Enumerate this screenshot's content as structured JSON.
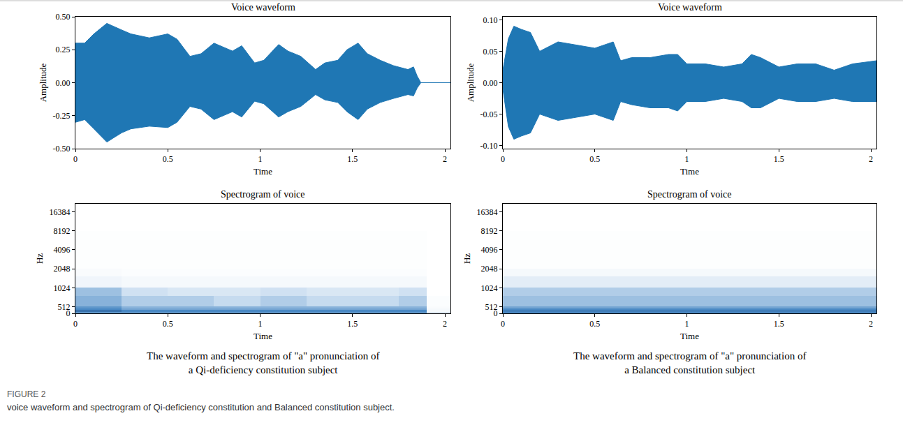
{
  "chart_data": [
    {
      "type": "area",
      "title": "Voice waveform",
      "x_label": "Time",
      "y_label": "Amplitude",
      "color": "#1f77b4",
      "x": [
        0,
        0.05,
        0.1,
        0.17,
        0.25,
        0.3,
        0.4,
        0.5,
        0.55,
        0.62,
        0.68,
        0.75,
        0.85,
        0.9,
        0.97,
        1.02,
        1.1,
        1.15,
        1.22,
        1.3,
        1.35,
        1.42,
        1.47,
        1.53,
        1.58,
        1.65,
        1.72,
        1.8,
        1.83,
        1.85,
        1.87,
        2.03
      ],
      "upper": [
        0.3,
        0.3,
        0.37,
        0.45,
        0.4,
        0.37,
        0.34,
        0.37,
        0.33,
        0.2,
        0.22,
        0.3,
        0.24,
        0.28,
        0.15,
        0.17,
        0.29,
        0.24,
        0.2,
        0.1,
        0.15,
        0.17,
        0.25,
        0.3,
        0.22,
        0.17,
        0.13,
        0.1,
        0.12,
        0.05,
        0.0,
        0.0
      ],
      "lower": [
        -0.3,
        -0.28,
        -0.35,
        -0.45,
        -0.38,
        -0.35,
        -0.33,
        -0.34,
        -0.3,
        -0.18,
        -0.2,
        -0.28,
        -0.22,
        -0.26,
        -0.14,
        -0.16,
        -0.26,
        -0.22,
        -0.18,
        -0.09,
        -0.13,
        -0.15,
        -0.22,
        -0.28,
        -0.2,
        -0.15,
        -0.12,
        -0.09,
        -0.1,
        -0.04,
        0.0,
        0.0
      ],
      "xlim": [
        0,
        2.03
      ],
      "xticks": [
        0,
        0.5,
        1,
        1.5,
        2
      ],
      "ylim": [
        -0.5,
        0.5
      ],
      "yticks": [
        {
          "value": -0.5,
          "label": "-0.50"
        },
        {
          "value": -0.25,
          "label": "-0.25"
        },
        {
          "value": 0,
          "label": "0.00"
        },
        {
          "value": 0.25,
          "label": "0.25"
        },
        {
          "value": 0.5,
          "label": "0.50"
        }
      ],
      "grid": false
    },
    {
      "type": "area",
      "title": "Voice waveform",
      "x_label": "Time",
      "y_label": "Amplitude",
      "color": "#1f77b4",
      "x": [
        0,
        0.03,
        0.06,
        0.1,
        0.15,
        0.2,
        0.3,
        0.4,
        0.5,
        0.6,
        0.64,
        0.7,
        0.8,
        0.9,
        0.95,
        1.0,
        1.1,
        1.2,
        1.3,
        1.35,
        1.4,
        1.5,
        1.6,
        1.7,
        1.8,
        1.9,
        2.03
      ],
      "upper": [
        0.02,
        0.07,
        0.09,
        0.085,
        0.08,
        0.05,
        0.065,
        0.06,
        0.055,
        0.065,
        0.035,
        0.04,
        0.04,
        0.045,
        0.045,
        0.03,
        0.03,
        0.025,
        0.03,
        0.045,
        0.04,
        0.025,
        0.03,
        0.03,
        0.02,
        0.03,
        0.035
      ],
      "lower": [
        -0.01,
        -0.07,
        -0.09,
        -0.085,
        -0.08,
        -0.05,
        -0.06,
        -0.055,
        -0.05,
        -0.06,
        -0.03,
        -0.035,
        -0.04,
        -0.04,
        -0.045,
        -0.03,
        -0.03,
        -0.025,
        -0.03,
        -0.04,
        -0.04,
        -0.025,
        -0.03,
        -0.03,
        -0.025,
        -0.03,
        -0.03
      ],
      "xlim": [
        0,
        2.03
      ],
      "xticks": [
        0,
        0.5,
        1,
        1.5,
        2
      ],
      "ylim": [
        -0.105,
        0.105
      ],
      "yticks": [
        {
          "value": -0.1,
          "label": "-0.10"
        },
        {
          "value": -0.05,
          "label": "-0.05"
        },
        {
          "value": 0,
          "label": "0.00"
        },
        {
          "value": 0.05,
          "label": "0.05"
        },
        {
          "value": 0.1,
          "label": "0.10"
        }
      ],
      "grid": false
    },
    {
      "type": "heatmap",
      "title": "Spectrogram of voice",
      "x_label": "Time",
      "y_label": "Hz",
      "color": "#08306b",
      "x_edges": [
        0,
        0.25,
        0.5,
        0.75,
        1.0,
        1.25,
        1.5,
        1.75,
        1.9,
        2.03
      ],
      "y_edges": [
        0,
        128,
        256,
        384,
        512,
        768,
        1024,
        1536,
        2048,
        4096,
        8192,
        16384,
        22050
      ],
      "cells": [
        [
          0.55,
          0.55,
          0.55,
          0.55,
          0.55,
          0.55,
          0.55,
          0.55,
          0.15
        ],
        [
          0.7,
          0.6,
          0.6,
          0.6,
          0.6,
          0.6,
          0.6,
          0.6,
          0.05
        ],
        [
          0.6,
          0.5,
          0.5,
          0.5,
          0.5,
          0.5,
          0.5,
          0.5,
          0.05
        ],
        [
          0.55,
          0.45,
          0.45,
          0.45,
          0.45,
          0.45,
          0.45,
          0.45,
          0.03
        ],
        [
          0.45,
          0.35,
          0.35,
          0.3,
          0.35,
          0.3,
          0.3,
          0.35,
          0.02
        ],
        [
          0.4,
          0.25,
          0.2,
          0.2,
          0.25,
          0.2,
          0.2,
          0.25,
          0
        ],
        [
          0.08,
          0.05,
          0.05,
          0.05,
          0.05,
          0.05,
          0.05,
          0.05,
          0
        ],
        [
          0.03,
          0.02,
          0.02,
          0.02,
          0.02,
          0.02,
          0.02,
          0.02,
          0
        ],
        [
          0.01,
          0.01,
          0.01,
          0.01,
          0.01,
          0.01,
          0.01,
          0.01,
          0
        ],
        [
          0.01,
          0.01,
          0.01,
          0.01,
          0.01,
          0.01,
          0.01,
          0.01,
          0
        ],
        [
          0,
          0,
          0,
          0,
          0,
          0,
          0,
          0,
          0
        ],
        [
          0,
          0,
          0,
          0,
          0,
          0,
          0,
          0,
          0
        ]
      ],
      "zlim": [
        0,
        1
      ],
      "xlim": [
        0,
        2.03
      ],
      "xticks": [
        0,
        0.5,
        1,
        1.5,
        2
      ],
      "ylim": [
        0,
        22050
      ],
      "yticks": [
        0,
        512,
        1024,
        2048,
        4096,
        8192,
        16384
      ],
      "grid": false
    },
    {
      "type": "heatmap",
      "title": "Spectrogram of voice",
      "x_label": "Time",
      "y_label": "Hz",
      "color": "#08306b",
      "x_edges": [
        0,
        0.25,
        0.5,
        0.75,
        1.0,
        1.25,
        1.5,
        1.75,
        1.9,
        2.03
      ],
      "y_edges": [
        0,
        128,
        256,
        384,
        512,
        768,
        1024,
        1536,
        2048,
        4096,
        8192,
        16384,
        22050
      ],
      "cells": [
        [
          0.6,
          0.6,
          0.6,
          0.6,
          0.6,
          0.6,
          0.6,
          0.6,
          0.6
        ],
        [
          0.65,
          0.65,
          0.65,
          0.65,
          0.65,
          0.65,
          0.65,
          0.65,
          0.65
        ],
        [
          0.6,
          0.6,
          0.6,
          0.6,
          0.6,
          0.6,
          0.6,
          0.6,
          0.6
        ],
        [
          0.5,
          0.5,
          0.5,
          0.5,
          0.5,
          0.5,
          0.5,
          0.5,
          0.5
        ],
        [
          0.4,
          0.4,
          0.4,
          0.4,
          0.4,
          0.4,
          0.4,
          0.4,
          0.4
        ],
        [
          0.35,
          0.35,
          0.35,
          0.35,
          0.35,
          0.35,
          0.35,
          0.35,
          0.35
        ],
        [
          0.15,
          0.15,
          0.15,
          0.15,
          0.15,
          0.15,
          0.15,
          0.15,
          0.15
        ],
        [
          0.05,
          0.05,
          0.05,
          0.05,
          0.05,
          0.05,
          0.05,
          0.05,
          0.05
        ],
        [
          0.01,
          0.01,
          0.01,
          0.01,
          0.01,
          0.01,
          0.01,
          0.01,
          0.01
        ],
        [
          0.01,
          0.01,
          0.01,
          0.01,
          0.01,
          0.01,
          0.01,
          0.01,
          0.01
        ],
        [
          0,
          0,
          0,
          0,
          0,
          0,
          0,
          0,
          0
        ],
        [
          0,
          0,
          0,
          0,
          0,
          0,
          0,
          0,
          0
        ]
      ],
      "zlim": [
        0,
        1
      ],
      "xlim": [
        0,
        2.03
      ],
      "xticks": [
        0,
        0.5,
        1,
        1.5,
        2
      ],
      "ylim": [
        0,
        22050
      ],
      "yticks": [
        0,
        512,
        1024,
        2048,
        4096,
        8192,
        16384
      ],
      "grid": false
    }
  ],
  "panel_captions": [
    [
      "The waveform and spectrogram of \"a\" pronunciation of",
      "a Qi-deficiency constitution subject"
    ],
    [
      "The waveform and spectrogram of \"a\" pronunciation of",
      "a Balanced constitution subject"
    ]
  ],
  "figure": {
    "label": "FIGURE 2",
    "caption": "voice waveform and spectrogram of Qi-deficiency constitution and Balanced constitution subject."
  }
}
